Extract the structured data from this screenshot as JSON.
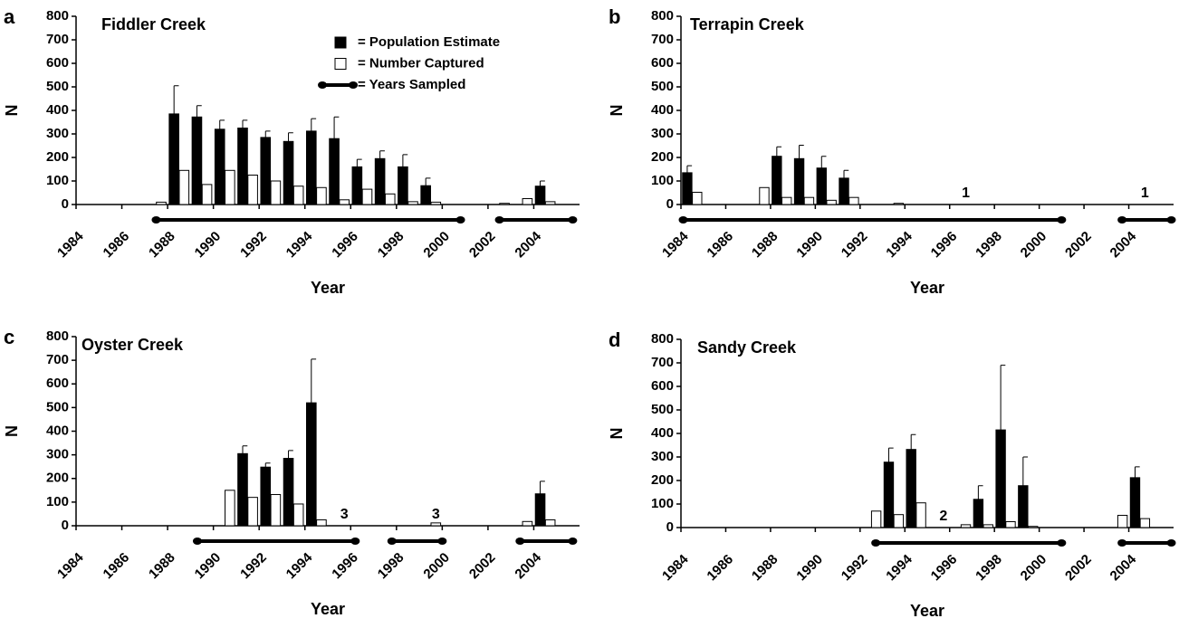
{
  "chart_data": [
    {
      "type": "bar",
      "label": "a",
      "title": "Fiddler Creek",
      "xlabel": "Year",
      "ylabel": "N",
      "x": [
        1984,
        1985,
        1986,
        1987,
        1988,
        1989,
        1990,
        1991,
        1992,
        1993,
        1994,
        1995,
        1996,
        1997,
        1998,
        1999,
        2000,
        2001,
        2002,
        2003,
        2004,
        2005
      ],
      "xlim": [
        1983.5,
        2005.5
      ],
      "xticks": [
        1984,
        1986,
        1988,
        1990,
        1992,
        1994,
        1996,
        1998,
        2000,
        2002,
        2004
      ],
      "ylim": [
        0,
        800
      ],
      "yticks": [
        0,
        100,
        200,
        300,
        400,
        500,
        600,
        700,
        800
      ],
      "series": [
        {
          "name": "= Population Estimate",
          "color": "#000000",
          "values": [
            null,
            null,
            null,
            null,
            385,
            372,
            320,
            325,
            285,
            268,
            312,
            280,
            160,
            195,
            160,
            80,
            null,
            null,
            null,
            null,
            78,
            null
          ],
          "errors": [
            null,
            null,
            null,
            null,
            120,
            48,
            38,
            33,
            27,
            37,
            53,
            92,
            32,
            33,
            52,
            32,
            null,
            null,
            null,
            null,
            22,
            null
          ]
        },
        {
          "name": "= Number Captured",
          "color": "#ffffff",
          "values": [
            null,
            null,
            null,
            10,
            145,
            85,
            145,
            125,
            100,
            78,
            72,
            20,
            65,
            45,
            12,
            10,
            null,
            null,
            5,
            25,
            12,
            null
          ]
        }
      ],
      "sampled_name": "= Years Sampled",
      "sampled": [
        [
          1987,
          2000.3
        ],
        [
          2002,
          2005.2
        ]
      ],
      "annotations": []
    },
    {
      "type": "bar",
      "label": "b",
      "title": "Terrapin Creek",
      "xlabel": "Year",
      "ylabel": "N",
      "x": [
        1984,
        1985,
        1986,
        1987,
        1988,
        1989,
        1990,
        1991,
        1992,
        1993,
        1994,
        1995,
        1996,
        1997,
        1998,
        1999,
        2000,
        2001,
        2002,
        2003,
        2004,
        2005
      ],
      "xlim": [
        1983.5,
        2005.5
      ],
      "xticks": [
        1984,
        1986,
        1988,
        1990,
        1992,
        1994,
        1996,
        1998,
        2000,
        2002,
        2004
      ],
      "ylim": [
        0,
        800
      ],
      "yticks": [
        0,
        100,
        200,
        300,
        400,
        500,
        600,
        700,
        800
      ],
      "series": [
        {
          "color": "#000000",
          "values": [
            135,
            null,
            null,
            null,
            205,
            195,
            155,
            112,
            null,
            null,
            null,
            null,
            null,
            null,
            null,
            null,
            null,
            null,
            null,
            null,
            null,
            null
          ],
          "errors": [
            30,
            null,
            null,
            null,
            40,
            57,
            50,
            33,
            null,
            null,
            null,
            null,
            null,
            null,
            null,
            null,
            null,
            null,
            null,
            null,
            null,
            null
          ]
        },
        {
          "color": "#ffffff",
          "values": [
            52,
            null,
            null,
            72,
            30,
            30,
            18,
            30,
            null,
            5,
            null,
            null,
            null,
            null,
            null,
            null,
            null,
            null,
            null,
            null,
            null,
            null
          ]
        }
      ],
      "sampled": [
        [
          1983.6,
          2000.5
        ],
        [
          2003.2,
          2005.4
        ]
      ],
      "annotations": [
        {
          "text": "1",
          "x": 1996
        },
        {
          "text": "1",
          "x": 2004
        }
      ]
    },
    {
      "type": "bar",
      "label": "c",
      "title": "Oyster Creek",
      "xlabel": "Year",
      "ylabel": "N",
      "x": [
        1984,
        1985,
        1986,
        1987,
        1988,
        1989,
        1990,
        1991,
        1992,
        1993,
        1994,
        1995,
        1996,
        1997,
        1998,
        1999,
        2000,
        2001,
        2002,
        2003,
        2004,
        2005
      ],
      "xlim": [
        1983.5,
        2005.5
      ],
      "xticks": [
        1984,
        1986,
        1988,
        1990,
        1992,
        1994,
        1996,
        1998,
        2000,
        2002,
        2004
      ],
      "ylim": [
        0,
        800
      ],
      "yticks": [
        0,
        100,
        200,
        300,
        400,
        500,
        600,
        700,
        800
      ],
      "series": [
        {
          "color": "#000000",
          "values": [
            null,
            null,
            null,
            null,
            null,
            null,
            null,
            305,
            248,
            285,
            520,
            null,
            null,
            null,
            null,
            null,
            null,
            null,
            null,
            null,
            135,
            null
          ],
          "errors": [
            null,
            null,
            null,
            null,
            null,
            null,
            null,
            33,
            17,
            33,
            185,
            null,
            null,
            null,
            null,
            null,
            null,
            null,
            null,
            null,
            53,
            null
          ]
        },
        {
          "color": "#ffffff",
          "values": [
            null,
            null,
            null,
            null,
            null,
            null,
            150,
            120,
            132,
            92,
            25,
            null,
            null,
            null,
            null,
            12,
            null,
            null,
            null,
            18,
            25,
            null
          ]
        }
      ],
      "sampled": [
        [
          1988.8,
          1995.7
        ],
        [
          1997.3,
          1999.5
        ],
        [
          2002.9,
          2005.2
        ]
      ],
      "annotations": [
        {
          "text": "3",
          "x": 1995
        },
        {
          "text": "3",
          "x": 1999
        }
      ]
    },
    {
      "type": "bar",
      "label": "d",
      "title": "Sandy Creek",
      "xlabel": "Year",
      "ylabel": "N",
      "x": [
        1984,
        1985,
        1986,
        1987,
        1988,
        1989,
        1990,
        1991,
        1992,
        1993,
        1994,
        1995,
        1996,
        1997,
        1998,
        1999,
        2000,
        2001,
        2002,
        2003,
        2004,
        2005
      ],
      "xlim": [
        1983.5,
        2005.5
      ],
      "xticks": [
        1984,
        1986,
        1988,
        1990,
        1992,
        1994,
        1996,
        1998,
        2000,
        2002,
        2004
      ],
      "ylim": [
        0,
        800
      ],
      "yticks": [
        0,
        100,
        200,
        300,
        400,
        500,
        600,
        700,
        800
      ],
      "series": [
        {
          "color": "#000000",
          "values": [
            null,
            null,
            null,
            null,
            null,
            null,
            null,
            null,
            null,
            278,
            332,
            null,
            null,
            120,
            415,
            178,
            null,
            null,
            null,
            null,
            212,
            null
          ],
          "errors": [
            null,
            null,
            null,
            null,
            null,
            null,
            null,
            null,
            null,
            60,
            63,
            null,
            null,
            58,
            275,
            122,
            null,
            null,
            null,
            null,
            46,
            null
          ]
        },
        {
          "color": "#ffffff",
          "values": [
            null,
            null,
            null,
            null,
            null,
            null,
            null,
            null,
            70,
            55,
            105,
            null,
            12,
            12,
            25,
            5,
            null,
            null,
            null,
            52,
            38,
            null
          ]
        }
      ],
      "sampled": [
        [
          1992.2,
          2000.5
        ],
        [
          2003.2,
          2005.4
        ]
      ],
      "annotations": [
        {
          "text": "2",
          "x": 1995
        }
      ]
    }
  ]
}
